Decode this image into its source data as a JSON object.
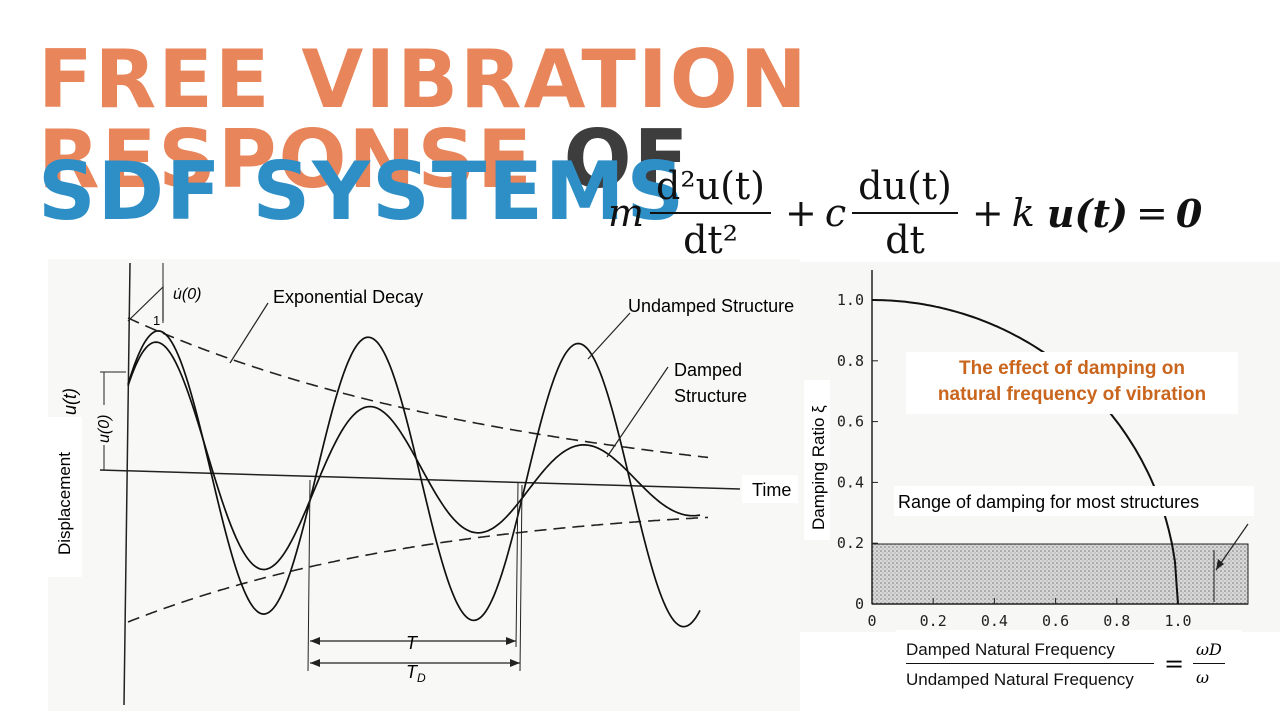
{
  "title": {
    "line1_main": "FREE VIBRATION RESPONSE",
    "line1_tail": "OF",
    "line2": "SDF SYSTEMS"
  },
  "equation": {
    "m": "m",
    "num1": "d²u(t)",
    "den1": "dt²",
    "plus1": "+",
    "c": "c",
    "num2": "du(t)",
    "den2": "dt",
    "plus2": "+",
    "k": "k",
    "u": "u(t)",
    "eq": "=",
    "zero": "0"
  },
  "left_plot": {
    "udot0": "u̇(0)",
    "one": "1",
    "u0": "u(0)",
    "ut": "u(t)",
    "y_label": "Displacement",
    "x_label": "Time",
    "exp_decay": "Exponential Decay",
    "undamped": "Undamped Structure",
    "damped_1": "Damped",
    "damped_2": "Structure",
    "T": "T",
    "TD": "T_D"
  },
  "right_plot": {
    "y_label": "Damping Ratio ξ",
    "y_ticks": [
      "0",
      "0.2",
      "0.4",
      "0.6",
      "0.8",
      "1.0"
    ],
    "x_ticks": [
      "0",
      "0.2",
      "0.4",
      "0.6",
      "0.8",
      "1.0"
    ],
    "range_label": "Range of damping for most structures",
    "effect_line1": "The effect of damping on",
    "effect_line2": "natural frequency of vibration",
    "ratio_top": "Damped Natural Frequency",
    "ratio_bottom": "Undamped Natural Frequency",
    "ratio_eq": "=",
    "omega_d": "ωD",
    "omega": "ω"
  }
}
